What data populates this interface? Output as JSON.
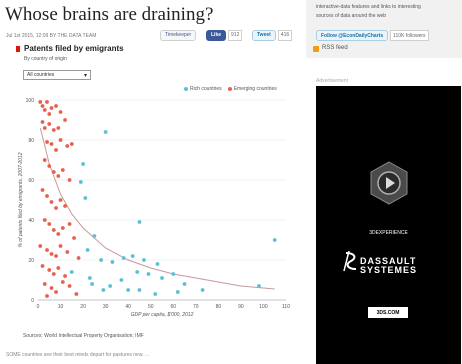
{
  "article": {
    "title": "Whose brains are draining?",
    "byline": "Jul 1st 2015, 12:09 BY THE DATA TEAM",
    "share": {
      "timekeeper": "Timekeeper",
      "fb_label": "Like",
      "fb_count": "912",
      "tw_label": "Tweet",
      "tw_count": "416"
    }
  },
  "chart": {
    "title": "Patents filed by emigrants",
    "subtitle": "By country of origin",
    "select_value": "All countries",
    "source": "Sources: World Intellectual Property Organisation; IMF"
  },
  "footer_text": "SOME countries see their best minds depart for pastures new. ...",
  "sidebar": {
    "line1": "interactive-data features and links to interesting",
    "line2": "sources of data around the web",
    "follow_label": "Follow @EconDailyCharts",
    "follow_count": "110K followers",
    "rss_label": "RSS feed",
    "ad_label": "Advertisement"
  },
  "ad": {
    "experience": "3DEXPERIENCE",
    "brand_line1": "DASSAULT",
    "brand_line2": "SYSTEMES",
    "button": "3DS.COM"
  },
  "colors": {
    "rich": "#5bbfd8",
    "emerging": "#e8604e",
    "trend": "#c79a9a",
    "accent": "#e3120b"
  },
  "chart_data": {
    "type": "scatter",
    "xlabel": "GDP per capita, $'000, 2012",
    "ylabel": "% of patents filed by emigrants, 2007-2012",
    "xlim": [
      0,
      110
    ],
    "ylim": [
      0,
      100
    ],
    "xticks": [
      0,
      10,
      20,
      30,
      40,
      50,
      60,
      70,
      80,
      90,
      100,
      110
    ],
    "yticks": [
      0,
      20,
      40,
      60,
      80,
      100
    ],
    "grid": true,
    "legend_position": "top-right",
    "series": [
      {
        "name": "Rich countries",
        "points": [
          [
            30,
            84
          ],
          [
            20,
            68
          ],
          [
            19,
            59
          ],
          [
            21,
            51
          ],
          [
            25,
            32
          ],
          [
            45,
            39
          ],
          [
            22,
            25
          ],
          [
            28,
            20
          ],
          [
            33,
            19
          ],
          [
            38,
            21
          ],
          [
            42,
            22
          ],
          [
            47,
            20
          ],
          [
            53,
            18
          ],
          [
            44,
            14
          ],
          [
            49,
            13
          ],
          [
            55,
            11
          ],
          [
            60,
            13
          ],
          [
            37,
            10
          ],
          [
            32,
            7
          ],
          [
            40,
            5
          ],
          [
            45,
            5
          ],
          [
            24,
            8
          ],
          [
            29,
            5
          ],
          [
            52,
            3
          ],
          [
            65,
            8
          ],
          [
            73,
            5
          ],
          [
            98,
            7
          ],
          [
            105,
            30
          ],
          [
            62,
            4
          ],
          [
            15,
            14
          ],
          [
            23,
            11
          ]
        ]
      },
      {
        "name": "Emerging countries",
        "points": [
          [
            1,
            99
          ],
          [
            2,
            97
          ],
          [
            3,
            95
          ],
          [
            4,
            99
          ],
          [
            5,
            93
          ],
          [
            6,
            96
          ],
          [
            8,
            97
          ],
          [
            10,
            94
          ],
          [
            2,
            89
          ],
          [
            3,
            86
          ],
          [
            5,
            88
          ],
          [
            7,
            85
          ],
          [
            9,
            86
          ],
          [
            12,
            90
          ],
          [
            4,
            79
          ],
          [
            6,
            78
          ],
          [
            8,
            75
          ],
          [
            10,
            80
          ],
          [
            13,
            77
          ],
          [
            15,
            78
          ],
          [
            3,
            70
          ],
          [
            5,
            67
          ],
          [
            7,
            64
          ],
          [
            9,
            62
          ],
          [
            11,
            65
          ],
          [
            14,
            60
          ],
          [
            2,
            55
          ],
          [
            4,
            52
          ],
          [
            6,
            49
          ],
          [
            8,
            46
          ],
          [
            10,
            50
          ],
          [
            12,
            47
          ],
          [
            3,
            40
          ],
          [
            5,
            38
          ],
          [
            7,
            35
          ],
          [
            9,
            33
          ],
          [
            11,
            36
          ],
          [
            14,
            38
          ],
          [
            16,
            31
          ],
          [
            1,
            27
          ],
          [
            4,
            25
          ],
          [
            6,
            23
          ],
          [
            8,
            22
          ],
          [
            10,
            27
          ],
          [
            13,
            24
          ],
          [
            18,
            21
          ],
          [
            2,
            17
          ],
          [
            5,
            15
          ],
          [
            7,
            13
          ],
          [
            9,
            16
          ],
          [
            12,
            12
          ],
          [
            3,
            8
          ],
          [
            6,
            6
          ],
          [
            8,
            4
          ],
          [
            11,
            9
          ],
          [
            14,
            7
          ],
          [
            4,
            2
          ],
          [
            17,
            3
          ]
        ]
      }
    ],
    "trendline": {
      "type": "curve",
      "points": [
        [
          1,
          86
        ],
        [
          5,
          68
        ],
        [
          10,
          53
        ],
        [
          15,
          43
        ],
        [
          20,
          36
        ],
        [
          30,
          26
        ],
        [
          40,
          20
        ],
        [
          50,
          16
        ],
        [
          60,
          13
        ],
        [
          70,
          11
        ],
        [
          80,
          9
        ],
        [
          90,
          7
        ],
        [
          100,
          6
        ],
        [
          105,
          5.5
        ]
      ]
    }
  }
}
